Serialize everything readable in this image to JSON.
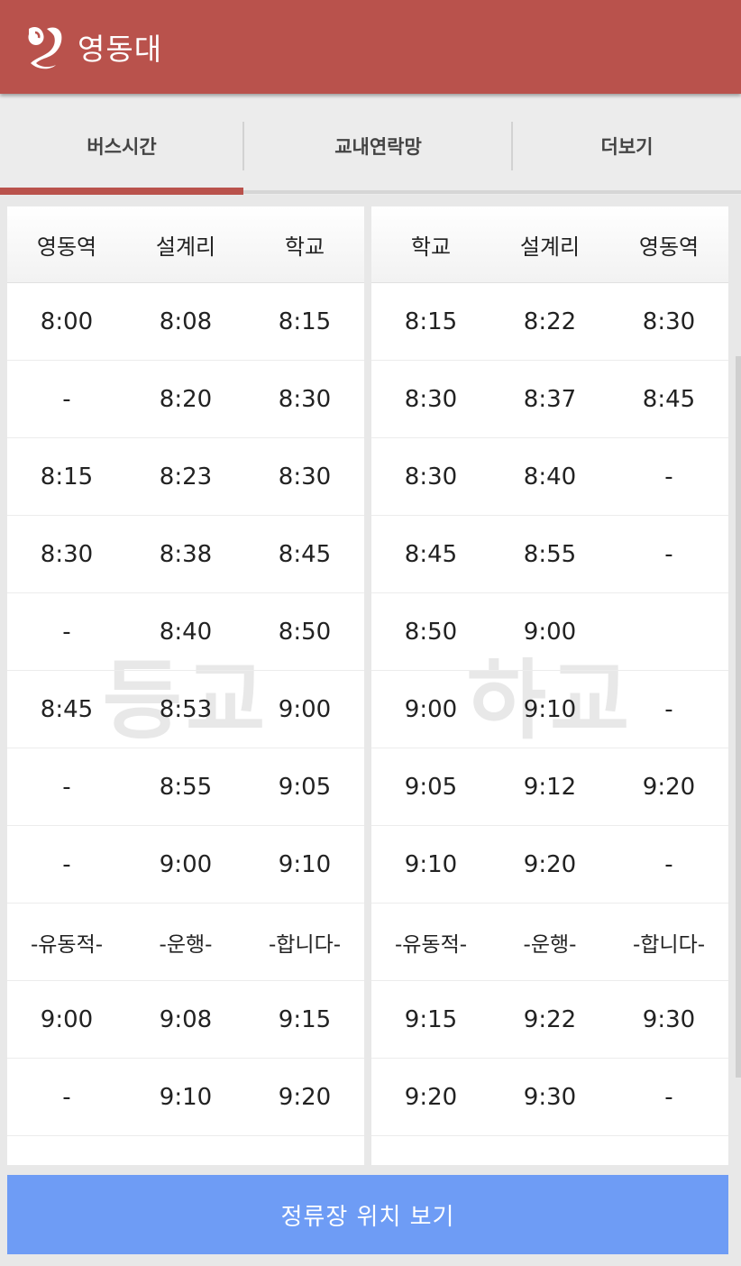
{
  "app": {
    "title": "영동대",
    "accent_color": "#b9524c",
    "logo_icon": "yd-logo-icon"
  },
  "tabs": [
    {
      "label": "버스시간",
      "active": true
    },
    {
      "label": "교내연락망",
      "active": false
    },
    {
      "label": "더보기",
      "active": false
    }
  ],
  "timetables": {
    "to_school": {
      "watermark": "등교",
      "headers": [
        "영동역",
        "설계리",
        "학교"
      ],
      "rows": [
        [
          "8:00",
          "8:08",
          "8:15"
        ],
        [
          "-",
          "8:20",
          "8:30"
        ],
        [
          "8:15",
          "8:23",
          "8:30"
        ],
        [
          "8:30",
          "8:38",
          "8:45"
        ],
        [
          "-",
          "8:40",
          "8:50"
        ],
        [
          "8:45",
          "8:53",
          "9:00"
        ],
        [
          "-",
          "8:55",
          "9:05"
        ],
        [
          "-",
          "9:00",
          "9:10"
        ],
        [
          "-유동적-",
          "-운행-",
          "-합니다-"
        ],
        [
          "9:00",
          "9:08",
          "9:15"
        ],
        [
          "-",
          "9:10",
          "9:20"
        ]
      ]
    },
    "from_school": {
      "watermark": "하교",
      "headers": [
        "학교",
        "설계리",
        "영동역"
      ],
      "rows": [
        [
          "8:15",
          "8:22",
          "8:30"
        ],
        [
          "8:30",
          "8:37",
          "8:45"
        ],
        [
          "8:30",
          "8:40",
          "-"
        ],
        [
          "8:45",
          "8:55",
          "-"
        ],
        [
          "8:50",
          "9:00",
          ""
        ],
        [
          "9:00",
          "9:10",
          "-"
        ],
        [
          "9:05",
          "9:12",
          "9:20"
        ],
        [
          "9:10",
          "9:20",
          "-"
        ],
        [
          "-유동적-",
          "-운행-",
          "-합니다-"
        ],
        [
          "9:15",
          "9:22",
          "9:30"
        ],
        [
          "9:20",
          "9:30",
          "-"
        ]
      ]
    }
  },
  "footer": {
    "button_label": "정류장 위치 보기",
    "button_color": "#6e9cf5"
  }
}
